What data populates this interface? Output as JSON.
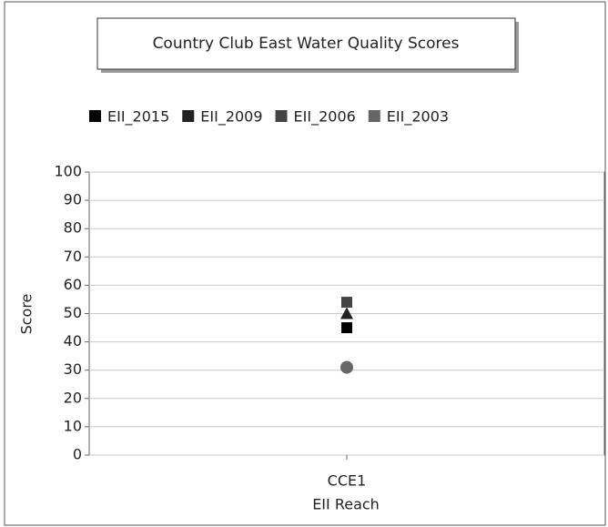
{
  "chart_data": {
    "type": "scatter",
    "title": "Country Club East Water Quality Scores",
    "x_label": "EII Reach",
    "y_label": "Score",
    "categories": [
      "CCE1"
    ],
    "series": [
      {
        "name": "EII_2015",
        "color": "#000000",
        "marker": "square",
        "values": [
          45
        ]
      },
      {
        "name": "EII_2009",
        "color": "#222222",
        "marker": "triangle",
        "values": [
          50
        ]
      },
      {
        "name": "EII_2006",
        "color": "#444444",
        "marker": "square",
        "values": [
          54
        ]
      },
      {
        "name": "EII_2003",
        "color": "#666666",
        "marker": "circle",
        "values": [
          31
        ]
      }
    ],
    "ylim": [
      0,
      100
    ],
    "yticks": [
      0,
      10,
      20,
      30,
      40,
      50,
      60,
      70,
      80,
      90,
      100
    ],
    "grid": true
  }
}
